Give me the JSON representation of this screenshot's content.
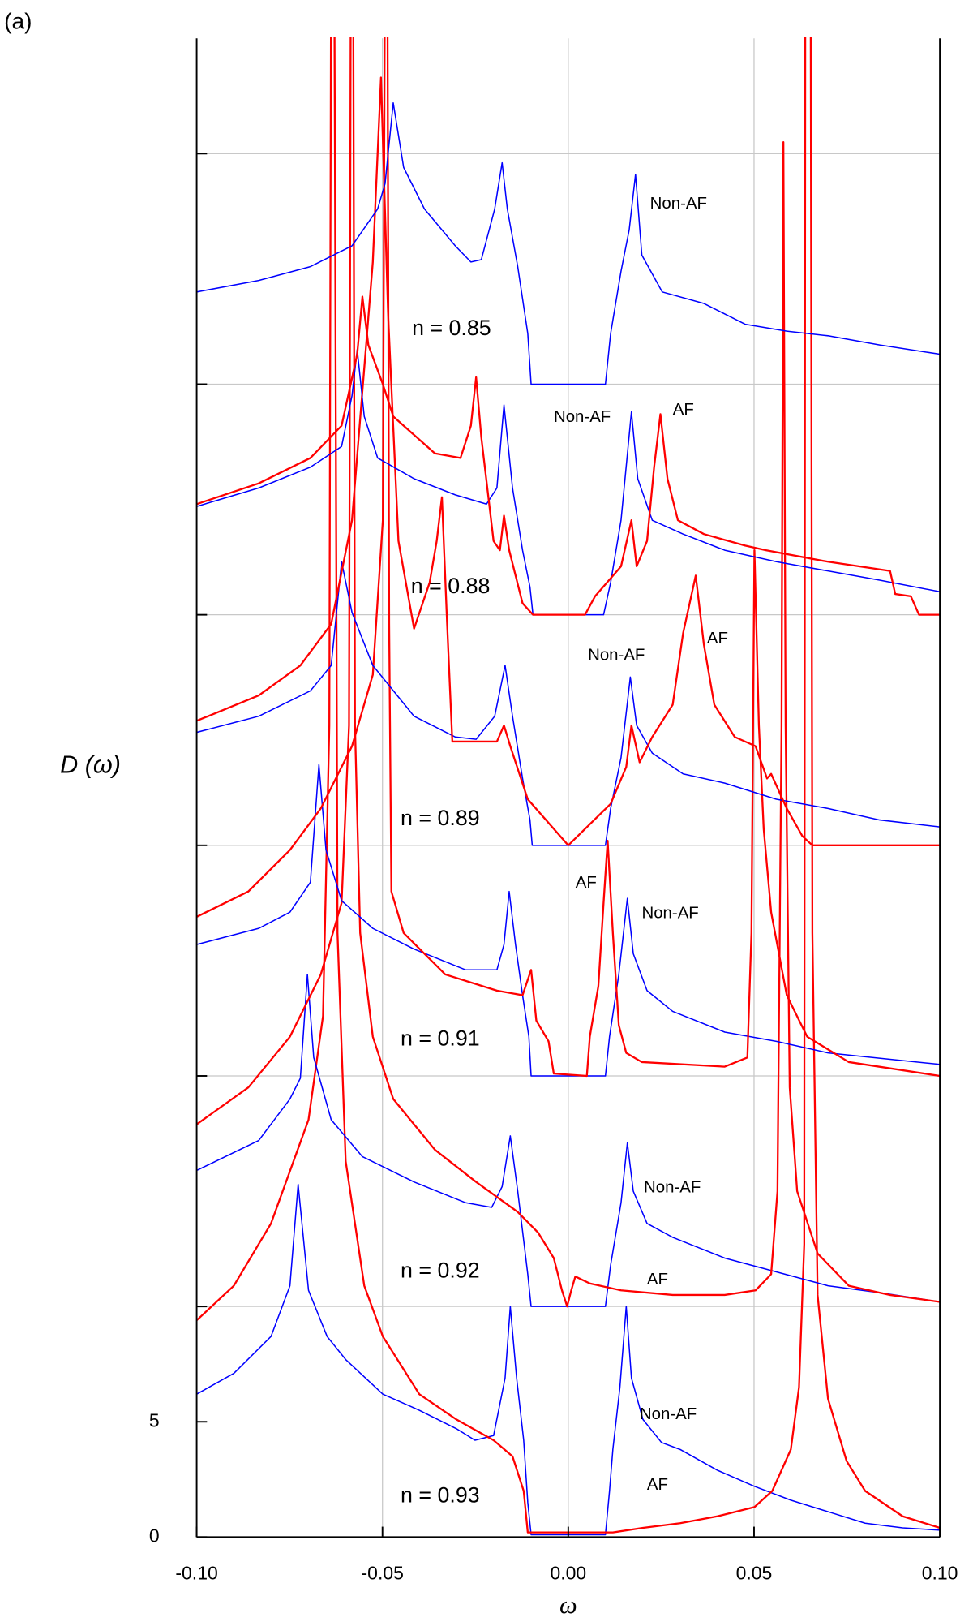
{
  "chart_data": {
    "type": "line",
    "panel_label": "(a)",
    "ylabel": "D (ω)",
    "xlabel": "ω",
    "xlim": [
      -0.1,
      0.1
    ],
    "xticks": [
      {
        "value": -0.1,
        "label": "-0.10"
      },
      {
        "value": -0.05,
        "label": "-0.05"
      },
      {
        "value": 0,
        "label": "0.00"
      },
      {
        "value": 0.05,
        "label": "0.05"
      },
      {
        "value": 0.1,
        "label": "0.10"
      }
    ],
    "ylim": [
      0,
      65
    ],
    "yticks": [
      0,
      5
    ],
    "ygrid": [
      10,
      20,
      30,
      40,
      50,
      60
    ],
    "grid": true,
    "series": [
      {
        "color": "#0000ff",
        "x": [
          -0.1,
          -0.09,
          -0.08,
          -0.0749,
          -0.0727,
          -0.0699,
          -0.0649,
          -0.0599,
          -0.0499,
          -0.0401,
          -0.0301,
          -0.0251,
          -0.0201,
          -0.017,
          -0.0156,
          -0.0139,
          -0.012,
          -0.0109,
          -0.01,
          0.01,
          0.0111,
          0.012,
          0.0139,
          0.0156,
          0.017,
          0.0201,
          0.0251,
          0.0301,
          0.0401,
          0.0501,
          0.0599,
          0.0699,
          0.0799,
          0.09,
          0.1
        ],
        "values": [
          6.2,
          7.1,
          8.7,
          10.9,
          15.3,
          10.7,
          8.7,
          7.7,
          6.2,
          5.5,
          4.7,
          4.2,
          4.4,
          6.9,
          10.0,
          6.9,
          4.2,
          1.5,
          0.1,
          0.1,
          2.0,
          3.8,
          6.5,
          10.0,
          6.9,
          5.1,
          4.1,
          3.8,
          2.9,
          2.2,
          1.6,
          1.1,
          0.6,
          0.4,
          0.3
        ]
      },
      {
        "color": "#ff0000",
        "x": [
          -0.1,
          -0.09,
          -0.08,
          -0.0699,
          -0.066,
          -0.0643,
          -0.0638,
          -0.063,
          -0.0621,
          -0.0599,
          -0.0549,
          -0.0499,
          -0.0401,
          -0.0301,
          -0.0201,
          -0.015,
          -0.012,
          -0.0109,
          0.012,
          0.0201,
          0.0301,
          0.0401,
          0.0501,
          0.0549,
          0.0599,
          0.0621,
          0.0635,
          0.0638,
          0.0652,
          0.0657,
          0.0671,
          0.0699,
          0.0749,
          0.0799,
          0.09,
          0.1
        ],
        "values": [
          9.4,
          10.9,
          13.6,
          18.1,
          22.6,
          35.2,
          70,
          70,
          26.2,
          16.3,
          10.9,
          8.7,
          6.2,
          5.1,
          4.2,
          3.5,
          2.0,
          0.2,
          0.2,
          0.4,
          0.6,
          0.9,
          1.3,
          2.0,
          3.8,
          6.5,
          12.7,
          70,
          70,
          26.2,
          10.5,
          6.0,
          3.3,
          2.0,
          0.9,
          0.4
        ]
      },
      {
        "color": "#0000ff",
        "x": [
          -0.1,
          -0.0833,
          -0.0749,
          -0.0721,
          -0.0702,
          -0.0685,
          -0.0638,
          -0.0554,
          -0.0415,
          -0.0276,
          -0.0206,
          -0.0178,
          -0.0156,
          -0.0136,
          -0.0109,
          -0.01,
          0.01,
          0.0114,
          0.0142,
          0.0159,
          0.0175,
          0.0212,
          0.0281,
          0.0421,
          0.056,
          0.0699,
          0.0838,
          0.1
        ],
        "values": [
          15.9,
          17.2,
          19.0,
          19.9,
          24.4,
          20.8,
          18.1,
          16.5,
          15.4,
          14.5,
          14.3,
          15.2,
          17.4,
          15.0,
          11.4,
          10.0,
          10.0,
          11.8,
          14.5,
          17.1,
          15.0,
          13.6,
          13.0,
          12.1,
          11.5,
          10.9,
          10.6,
          10.2
        ]
      },
      {
        "color": "#ff0000",
        "x": [
          -0.1,
          -0.0861,
          -0.0749,
          -0.0666,
          -0.061,
          -0.059,
          -0.0585,
          -0.0579,
          -0.0574,
          -0.056,
          -0.0526,
          -0.0471,
          -0.0359,
          -0.0248,
          -0.0136,
          -0.0081,
          -0.0039,
          -0.0017,
          -0.0003,
          0.0008,
          0.0019,
          0.0058,
          0.0142,
          0.0281,
          0.0421,
          0.0504,
          0.0546,
          0.0563,
          0.0574,
          0.0579,
          0.0585,
          0.0596,
          0.0616,
          0.0671,
          0.0755,
          0.0866,
          0.1
        ],
        "values": [
          17.9,
          19.5,
          21.7,
          24.4,
          27.5,
          35.2,
          70,
          70,
          35.2,
          26.2,
          21.7,
          19.0,
          16.8,
          15.4,
          14.1,
          13.2,
          12.1,
          10.7,
          10.0,
          10.7,
          11.3,
          11.0,
          10.7,
          10.5,
          10.5,
          10.7,
          11.4,
          15.0,
          35.2,
          60.5,
          35.2,
          19.5,
          15.0,
          12.3,
          10.9,
          10.5,
          10.2
        ]
      },
      {
        "color": "#0000ff",
        "x": [
          -0.1,
          -0.0833,
          -0.0749,
          -0.0694,
          -0.0671,
          -0.0652,
          -0.061,
          -0.0526,
          -0.0415,
          -0.0276,
          -0.0192,
          -0.0173,
          -0.0159,
          -0.0142,
          -0.0123,
          -0.0106,
          -0.01,
          0.01,
          0.0111,
          0.0136,
          0.0159,
          0.0175,
          0.0212,
          0.0281,
          0.0421,
          0.056,
          0.0699,
          0.1
        ],
        "values": [
          25.7,
          26.4,
          27.1,
          28.4,
          33.5,
          29.8,
          27.6,
          26.4,
          25.5,
          24.6,
          24.6,
          25.7,
          28.0,
          25.7,
          23.5,
          21.7,
          20.0,
          20.0,
          21.7,
          24.4,
          27.7,
          25.3,
          23.7,
          22.8,
          21.9,
          21.5,
          21.0,
          20.5
        ]
      },
      {
        "color": "#ff0000",
        "x": [
          -0.1,
          -0.0861,
          -0.0749,
          -0.0666,
          -0.0582,
          -0.0526,
          -0.0499,
          -0.0493,
          -0.0487,
          -0.0482,
          -0.0476,
          -0.0443,
          -0.0331,
          -0.0192,
          -0.0123,
          -0.01,
          -0.0086,
          -0.0053,
          -0.0039,
          0.005,
          0.0058,
          0.0081,
          0.0095,
          0.0106,
          0.012,
          0.0136,
          0.0156,
          0.0198,
          0.0421,
          0.0482,
          0.0493,
          0.0501,
          0.0513,
          0.0526,
          0.0546,
          0.0588,
          0.0643,
          0.0755,
          0.1
        ],
        "values": [
          26.9,
          28.0,
          29.8,
          31.6,
          34.3,
          37.4,
          44.1,
          70,
          70,
          39.6,
          28.0,
          26.2,
          24.4,
          23.7,
          23.5,
          24.6,
          22.4,
          21.5,
          20.1,
          20.0,
          21.7,
          23.9,
          27.5,
          30.2,
          26.2,
          22.2,
          21.0,
          20.6,
          20.4,
          20.8,
          26.2,
          42.8,
          35.2,
          30.7,
          27.1,
          23.5,
          21.7,
          20.6,
          20.0
        ]
      },
      {
        "color": "#0000ff",
        "x": [
          -0.1,
          -0.0833,
          -0.0694,
          -0.0638,
          -0.061,
          -0.0582,
          -0.0526,
          -0.0415,
          -0.0304,
          -0.0248,
          -0.0198,
          -0.017,
          -0.015,
          -0.0123,
          -0.0103,
          -0.0097,
          0.01,
          0.0114,
          0.0142,
          0.0167,
          0.0184,
          0.0226,
          0.0309,
          0.0421,
          0.056,
          0.0699,
          0.0838,
          0.1
        ],
        "values": [
          34.9,
          35.6,
          36.7,
          37.8,
          42.3,
          40.1,
          37.8,
          35.6,
          34.7,
          34.6,
          35.6,
          37.8,
          35.6,
          32.9,
          31.1,
          30.0,
          30.0,
          31.6,
          33.8,
          37.3,
          35.2,
          34.0,
          33.1,
          32.7,
          32.0,
          31.6,
          31.1,
          30.8
        ]
      },
      {
        "color": "#ff0000",
        "x": [
          -0.1,
          -0.0833,
          -0.0721,
          -0.0638,
          -0.0582,
          -0.0526,
          -0.0504,
          -0.0485,
          -0.0457,
          -0.0415,
          -0.0373,
          -0.0354,
          -0.034,
          -0.0326,
          -0.0312,
          -0.0192,
          -0.0173,
          -0.0156,
          -0.0109,
          0,
          0.0114,
          0.0156,
          0.017,
          0.0192,
          0.0226,
          0.0281,
          0.0309,
          0.0343,
          0.0365,
          0.0393,
          0.0448,
          0.0504,
          0.0535,
          0.0546,
          0.0588,
          0.063,
          0.0657,
          0.1
        ],
        "values": [
          35.4,
          36.5,
          37.8,
          39.6,
          44.1,
          55.3,
          63.3,
          53.1,
          43.2,
          39.4,
          41.4,
          43.2,
          45.1,
          39.6,
          34.5,
          34.5,
          35.2,
          34.3,
          32.0,
          30.0,
          31.8,
          33.4,
          35.2,
          33.6,
          34.7,
          36.1,
          39.2,
          41.7,
          38.7,
          36.1,
          34.7,
          34.3,
          32.9,
          33.1,
          31.6,
          30.4,
          30.0,
          30.0
        ]
      },
      {
        "color": "#0000ff",
        "x": [
          -0.1,
          -0.0833,
          -0.0694,
          -0.061,
          -0.0582,
          -0.0568,
          -0.0549,
          -0.0513,
          -0.0415,
          -0.0304,
          -0.022,
          -0.0192,
          -0.0173,
          -0.015,
          -0.0123,
          -0.0103,
          -0.0095,
          0.0095,
          0.0114,
          0.0142,
          0.017,
          0.0187,
          0.0226,
          0.0309,
          0.0421,
          0.056,
          0.0699,
          0.0838,
          0.1
        ],
        "values": [
          44.7,
          45.5,
          46.4,
          47.3,
          49.5,
          51.5,
          48.6,
          46.8,
          45.9,
          45.2,
          44.8,
          45.5,
          49.1,
          45.5,
          42.8,
          41.2,
          40.0,
          40.0,
          41.4,
          44.1,
          48.8,
          45.9,
          44.1,
          43.5,
          42.8,
          42.3,
          41.9,
          41.5,
          41.0
        ]
      },
      {
        "color": "#ff0000",
        "x": [
          -0.1,
          -0.0833,
          -0.0694,
          -0.061,
          -0.0568,
          -0.0554,
          -0.0538,
          -0.0499,
          -0.0471,
          -0.0359,
          -0.029,
          -0.0262,
          -0.0248,
          -0.0234,
          -0.0201,
          -0.0184,
          -0.0173,
          -0.0159,
          -0.0123,
          -0.0095,
          0.0045,
          0.0072,
          0.0142,
          0.017,
          0.0184,
          0.0212,
          0.0231,
          0.0248,
          0.0267,
          0.0295,
          0.0365,
          0.0476,
          0.0532,
          0.0699,
          0.0866,
          0.088,
          0.0922,
          0.0944,
          0.1
        ],
        "values": [
          44.8,
          45.7,
          46.8,
          48.2,
          51.3,
          53.8,
          51.7,
          50.0,
          48.6,
          47.0,
          46.8,
          48.2,
          50.3,
          47.7,
          43.2,
          42.8,
          44.3,
          42.8,
          40.5,
          40.0,
          40.0,
          40.8,
          42.1,
          44.1,
          42.1,
          43.2,
          46.4,
          48.7,
          45.9,
          44.1,
          43.5,
          43.0,
          42.8,
          42.3,
          41.9,
          40.9,
          40.8,
          40.0,
          40.0
        ]
      },
      {
        "color": "#0000ff",
        "x": [
          -0.1,
          -0.0833,
          -0.0694,
          -0.0582,
          -0.0513,
          -0.0493,
          -0.0471,
          -0.0443,
          -0.0387,
          -0.0304,
          -0.0262,
          -0.0234,
          -0.0198,
          -0.0178,
          -0.0164,
          -0.0136,
          -0.0109,
          -0.01,
          0.01,
          0.0114,
          0.0142,
          0.0164,
          0.0181,
          0.0198,
          0.0253,
          0.0365,
          0.0476,
          0.0588,
          0.0699,
          0.0838,
          0.1
        ],
        "values": [
          54.0,
          54.5,
          55.1,
          56.0,
          57.6,
          58.7,
          62.2,
          59.4,
          57.6,
          56.0,
          55.3,
          55.4,
          57.6,
          59.6,
          57.6,
          55.1,
          52.2,
          50.0,
          50.0,
          52.2,
          54.9,
          56.7,
          59.1,
          55.6,
          54.0,
          53.5,
          52.6,
          52.3,
          52.1,
          51.7,
          51.3
        ]
      }
    ],
    "annotations": [
      {
        "text": "n = 0.85",
        "color": "#000000"
      },
      {
        "text": "n = 0.88",
        "color": "#000000"
      },
      {
        "text": "n = 0.89",
        "color": "#000000"
      },
      {
        "text": "n = 0.91",
        "color": "#000000"
      },
      {
        "text": "n = 0.92",
        "color": "#000000"
      },
      {
        "text": "n = 0.93",
        "color": "#000000"
      },
      {
        "text": "Non-AF",
        "color": "#0000ff"
      },
      {
        "text": "Non-AF",
        "color": "#0000ff"
      },
      {
        "text": "Non-AF",
        "color": "#0000ff"
      },
      {
        "text": "Non-AF",
        "color": "#0000ff"
      },
      {
        "text": "Non-AF",
        "color": "#0000ff"
      },
      {
        "text": "Non-AF",
        "color": "#0000ff"
      },
      {
        "text": "AF",
        "color": "#ff0000"
      },
      {
        "text": "AF",
        "color": "#ff0000"
      },
      {
        "text": "AF",
        "color": "#ff0000"
      },
      {
        "text": "AF",
        "color": "#ff0000"
      },
      {
        "text": "AF",
        "color": "#ff0000"
      }
    ]
  }
}
